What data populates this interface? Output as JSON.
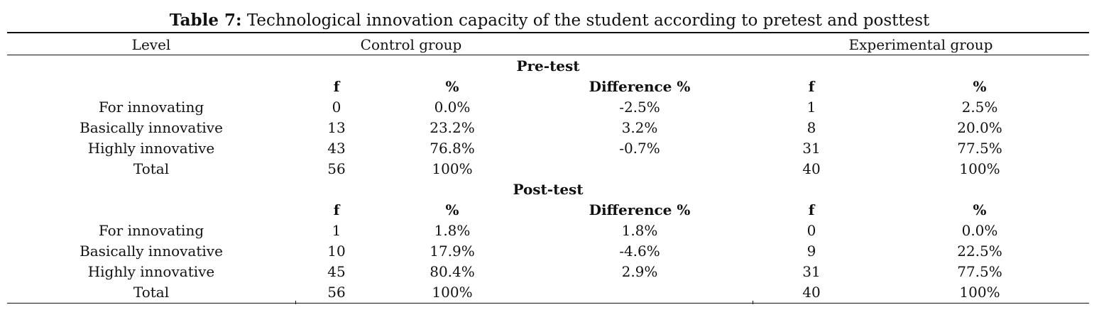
{
  "caption": {
    "label": "Table 7:",
    "title": "Technological innovation capacity of the student according to pretest and posttest"
  },
  "header": {
    "level": "Level",
    "control": "Control group",
    "experimental": "Experimental group"
  },
  "pretest": {
    "title": "Pre-test",
    "columns": {
      "f1": "f",
      "p1": "%",
      "diff": "Difference %",
      "f2": "f",
      "p2": "%"
    },
    "rows": [
      {
        "level": "For innovating",
        "f1": "0",
        "p1": "0.0%",
        "diff": "-2.5%",
        "f2": "1",
        "p2": "2.5%"
      },
      {
        "level": "Basically innovative",
        "f1": "13",
        "p1": "23.2%",
        "diff": "3.2%",
        "f2": "8",
        "p2": "20.0%"
      },
      {
        "level": "Highly innovative",
        "f1": "43",
        "p1": "76.8%",
        "diff": "-0.7%",
        "f2": "31",
        "p2": "77.5%"
      },
      {
        "level": "Total",
        "f1": "56",
        "p1": "100%",
        "diff": "",
        "f2": "40",
        "p2": "100%"
      }
    ]
  },
  "posttest": {
    "title": "Post-test",
    "columns": {
      "f1": "f",
      "p1": "%",
      "diff": "Difference %",
      "f2": "f",
      "p2": "%"
    },
    "rows": [
      {
        "level": "For innovating",
        "f1": "1",
        "p1": "1.8%",
        "diff": "1.8%",
        "f2": "0",
        "p2": "0.0%"
      },
      {
        "level": "Basically innovative",
        "f1": "10",
        "p1": "17.9%",
        "diff": "-4.6%",
        "f2": "9",
        "p2": "22.5%"
      },
      {
        "level": "Highly innovative",
        "f1": "45",
        "p1": "80.4%",
        "diff": "2.9%",
        "f2": "31",
        "p2": "77.5%"
      },
      {
        "level": "Total",
        "f1": "56",
        "p1": "100%",
        "diff": "",
        "f2": "40",
        "p2": "100%"
      }
    ]
  }
}
